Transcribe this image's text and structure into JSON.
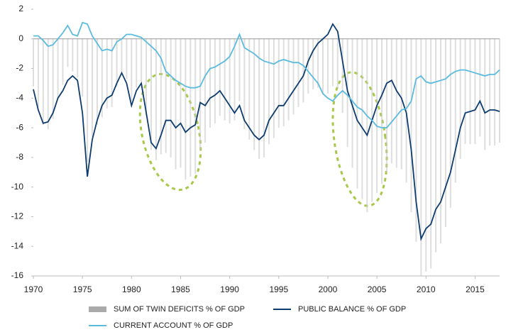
{
  "chart_data": {
    "type": "line",
    "x": [
      1970,
      1970.5,
      1971,
      1971.5,
      1972,
      1972.5,
      1973,
      1973.5,
      1974,
      1974.5,
      1975,
      1975.5,
      1976,
      1976.5,
      1977,
      1977.5,
      1978,
      1978.5,
      1979,
      1979.5,
      1980,
      1980.5,
      1981,
      1981.5,
      1982,
      1982.5,
      1983,
      1983.5,
      1984,
      1984.5,
      1985,
      1985.5,
      1986,
      1986.5,
      1987,
      1987.5,
      1988,
      1988.5,
      1989,
      1989.5,
      1990,
      1990.5,
      1991,
      1991.5,
      1992,
      1992.5,
      1993,
      1993.5,
      1994,
      1994.5,
      1995,
      1995.5,
      1996,
      1996.5,
      1997,
      1997.5,
      1998,
      1998.5,
      1999,
      1999.5,
      2000,
      2000.5,
      2001,
      2001.5,
      2002,
      2002.5,
      2003,
      2003.5,
      2004,
      2004.5,
      2005,
      2005.5,
      2006,
      2006.5,
      2007,
      2007.5,
      2008,
      2008.5,
      2009,
      2009.5,
      2010,
      2010.5,
      2011,
      2011.5,
      2012,
      2012.5,
      2013,
      2013.5,
      2014,
      2014.5,
      2015,
      2015.5,
      2016,
      2016.5,
      2017,
      2017.5
    ],
    "series": [
      {
        "name": "SUM OF TWIN DEFICITS % OF GDP",
        "kind": "bar",
        "color": "#c8c8c8",
        "values": [
          -3.2,
          -4.6,
          -5.8,
          -6.1,
          -5.4,
          -4.0,
          -3.1,
          -1.9,
          -2.2,
          -2.6,
          -3.9,
          -8.3,
          -6.6,
          -5.8,
          -5.3,
          -4.7,
          -4.6,
          -3.2,
          -2.3,
          -2.7,
          -4.2,
          -3.3,
          -2.9,
          -5.2,
          -7.5,
          -8.2,
          -7.8,
          -7.7,
          -8.0,
          -8.8,
          -8.7,
          -9.5,
          -9.3,
          -9.1,
          -7.5,
          -7.0,
          -6.0,
          -5.7,
          -5.2,
          -5.5,
          -5.7,
          -5.5,
          -4.2,
          -6.1,
          -6.8,
          -7.5,
          -8.1,
          -8.0,
          -7.1,
          -6.7,
          -6.0,
          -5.9,
          -5.5,
          -5.1,
          -4.6,
          -4.3,
          -3.7,
          -3.4,
          -3.3,
          -3.7,
          -3.7,
          -3.2,
          -3.3,
          -5.0,
          -7.3,
          -8.7,
          -10.1,
          -10.8,
          -11.7,
          -11.0,
          -10.4,
          -9.8,
          -9.0,
          -8.4,
          -8.7,
          -8.8,
          -9.7,
          -11.7,
          -13.7,
          -16.0,
          -15.7,
          -15.5,
          -14.4,
          -13.8,
          -12.7,
          -11.4,
          -9.7,
          -8.1,
          -7.1,
          -7.1,
          -7.1,
          -6.6,
          -7.5,
          -7.2,
          -7.2,
          -7.0
        ]
      },
      {
        "name": "PUBLIC BALANCE % OF GDP",
        "kind": "line",
        "color": "#0d3c6e",
        "values": [
          -3.4,
          -4.8,
          -5.7,
          -5.6,
          -5.0,
          -4.0,
          -3.5,
          -2.8,
          -2.5,
          -2.8,
          -5.0,
          -9.3,
          -6.8,
          -5.5,
          -4.5,
          -4.0,
          -3.8,
          -3.0,
          -2.3,
          -3.0,
          -4.5,
          -3.5,
          -3.0,
          -5.0,
          -7.0,
          -7.4,
          -6.5,
          -5.5,
          -5.5,
          -6.0,
          -5.7,
          -6.3,
          -6.0,
          -5.8,
          -4.3,
          -4.5,
          -4.0,
          -3.8,
          -3.5,
          -4.0,
          -4.5,
          -5.0,
          -4.5,
          -5.5,
          -6.0,
          -6.5,
          -6.8,
          -6.5,
          -5.5,
          -5.0,
          -4.5,
          -4.5,
          -4.0,
          -3.5,
          -3.0,
          -2.5,
          -1.5,
          -0.8,
          -0.3,
          0.0,
          0.3,
          1.0,
          0.5,
          -1.5,
          -3.5,
          -4.5,
          -5.5,
          -6.0,
          -6.5,
          -5.5,
          -4.5,
          -3.8,
          -3.0,
          -2.8,
          -3.5,
          -4.0,
          -5.0,
          -7.5,
          -11.0,
          -13.5,
          -12.8,
          -12.5,
          -11.5,
          -11.0,
          -10.0,
          -9.0,
          -7.5,
          -6.0,
          -5.0,
          -4.9,
          -4.8,
          -4.2,
          -5.0,
          -4.8,
          -4.8,
          -4.9
        ]
      },
      {
        "name": "CURRENT ACCOUNT % OF GDP",
        "kind": "line",
        "color": "#5bbbdf",
        "values": [
          0.2,
          0.2,
          -0.1,
          -0.5,
          -0.4,
          0.0,
          0.4,
          0.9,
          0.3,
          0.2,
          1.1,
          1.0,
          0.2,
          -0.3,
          -0.8,
          -0.7,
          -0.8,
          -0.2,
          0.0,
          0.3,
          0.3,
          0.2,
          0.1,
          -0.2,
          -0.5,
          -0.8,
          -1.3,
          -2.2,
          -2.5,
          -2.8,
          -3.0,
          -3.2,
          -3.3,
          -3.3,
          -3.2,
          -2.5,
          -2.0,
          -1.9,
          -1.7,
          -1.5,
          -1.2,
          -0.5,
          0.3,
          -0.6,
          -0.8,
          -1.0,
          -1.3,
          -1.5,
          -1.6,
          -1.7,
          -1.5,
          -1.4,
          -1.5,
          -1.6,
          -1.6,
          -1.8,
          -2.2,
          -2.6,
          -3.0,
          -3.7,
          -4.0,
          -4.2,
          -3.8,
          -3.5,
          -3.8,
          -4.2,
          -4.6,
          -4.8,
          -5.2,
          -5.5,
          -5.9,
          -6.0,
          -6.0,
          -5.6,
          -5.2,
          -4.8,
          -4.7,
          -4.2,
          -2.7,
          -2.5,
          -2.9,
          -3.0,
          -2.9,
          -2.8,
          -2.7,
          -2.4,
          -2.2,
          -2.1,
          -2.1,
          -2.2,
          -2.3,
          -2.4,
          -2.5,
          -2.4,
          -2.4,
          -2.1
        ]
      }
    ],
    "xlim": [
      1970,
      2017.5
    ],
    "xticks": [
      1970,
      1975,
      1980,
      1985,
      1990,
      1995,
      2000,
      2005,
      2010,
      2015
    ],
    "ylim": [
      -16,
      2
    ],
    "yticks": [
      -16,
      -14,
      -12,
      -10,
      -8,
      -6,
      -4,
      -2,
      0,
      2
    ],
    "legend": "bottom"
  }
}
